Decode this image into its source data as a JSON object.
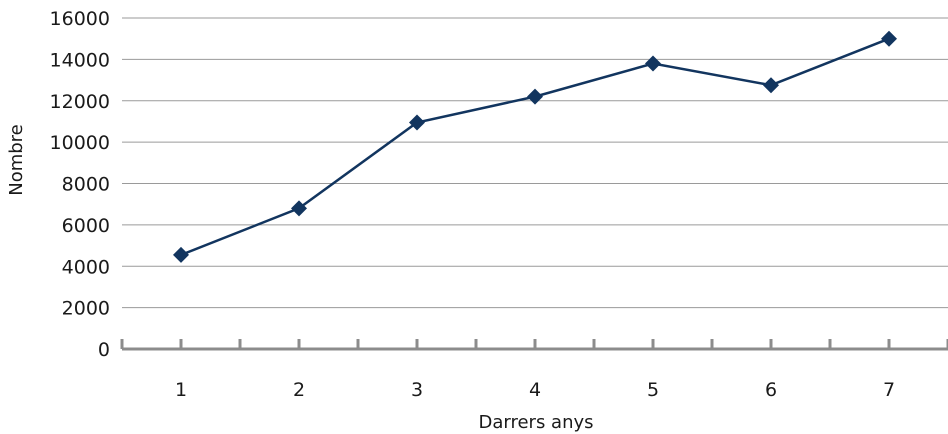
{
  "chart_data": {
    "type": "line",
    "title": "",
    "xlabel": "Darrers anys",
    "ylabel": "Nombre",
    "categories": [
      "1",
      "2",
      "3",
      "4",
      "5",
      "6",
      "7"
    ],
    "series": [
      {
        "values": [
          4550,
          6800,
          10950,
          12200,
          13800,
          12750,
          15000
        ]
      }
    ],
    "ylim": [
      0,
      16000
    ],
    "yticks": [
      "0",
      "2000",
      "4000",
      "6000",
      "8000",
      "10000",
      "12000",
      "14000",
      "16000"
    ],
    "grid": true,
    "legend": "none",
    "marker": "diamond",
    "color": "#12355f"
  }
}
